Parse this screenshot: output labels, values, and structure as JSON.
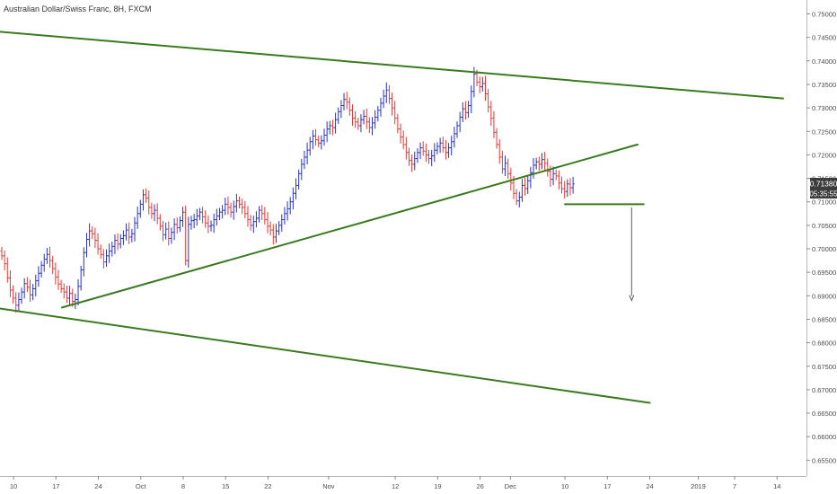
{
  "header": {
    "title": "Australian Dollar/Swiss Franc, 8H, FXCM"
  },
  "price_tag": {
    "price": "0.71380",
    "countdown": "05:35:55"
  },
  "chart_data": {
    "type": "candlestick",
    "title": "Australian Dollar/Swiss Franc, 8H, FXCM",
    "xlabel": "",
    "ylabel": "",
    "ylim": [
      0.6525,
      0.7525
    ],
    "y_ticks": [
      "0.75000",
      "0.74500",
      "0.74000",
      "0.73500",
      "0.73000",
      "0.72500",
      "0.72000",
      "0.71500",
      "0.71000",
      "0.70500",
      "0.70000",
      "0.69500",
      "0.69000",
      "0.68500",
      "0.68000",
      "0.67500",
      "0.67000",
      "0.66500",
      "0.66000",
      "0.65500"
    ],
    "x_ticks": [
      "10",
      "17",
      "24",
      "Oct",
      "8",
      "15",
      "22",
      "Nov",
      "12",
      "19",
      "26",
      "Dec",
      "10",
      "17",
      "24",
      "2019",
      "7",
      "14"
    ],
    "bars_per_day": 3,
    "candles_start": "Sep 10",
    "up_color": "#2632c8",
    "down_color": "#e53935",
    "close_path": [
      0.6985,
      0.6968,
      0.6938,
      0.6912,
      0.6895,
      0.688,
      0.6892,
      0.6908,
      0.6926,
      0.6918,
      0.6902,
      0.6915,
      0.6932,
      0.6948,
      0.6965,
      0.6978,
      0.6988,
      0.6975,
      0.6958,
      0.694,
      0.6925,
      0.6915,
      0.6908,
      0.6895,
      0.6905,
      0.6888,
      0.6892,
      0.692,
      0.6955,
      0.6992,
      0.702,
      0.7038,
      0.7032,
      0.7018,
      0.7,
      0.6988,
      0.6972,
      0.6985,
      0.6995,
      0.7005,
      0.7018,
      0.701,
      0.7022,
      0.7028,
      0.704,
      0.7025,
      0.7032,
      0.7055,
      0.7075,
      0.7095,
      0.7115,
      0.7108,
      0.7088,
      0.7075,
      0.7082,
      0.7065,
      0.7048,
      0.703,
      0.7042,
      0.7022,
      0.7035,
      0.7052,
      0.7045,
      0.706,
      0.7078,
      0.6975,
      0.7052,
      0.706,
      0.7062,
      0.707,
      0.7078,
      0.7068,
      0.7055,
      0.7048,
      0.705,
      0.7062,
      0.707,
      0.7078,
      0.7082,
      0.7095,
      0.7088,
      0.7078,
      0.709,
      0.7102,
      0.7095,
      0.7088,
      0.7075,
      0.7062,
      0.705,
      0.7058,
      0.7065,
      0.7082,
      0.7075,
      0.7062,
      0.7048,
      0.704,
      0.7025,
      0.7038,
      0.705,
      0.7062,
      0.7075,
      0.7085,
      0.71,
      0.7118,
      0.7135,
      0.716,
      0.718,
      0.7195,
      0.721,
      0.7228,
      0.724,
      0.7232,
      0.7225,
      0.723,
      0.7242,
      0.7255,
      0.7262,
      0.7258,
      0.7275,
      0.7292,
      0.7305,
      0.7318,
      0.7312,
      0.7295,
      0.7278,
      0.727,
      0.7262,
      0.7275,
      0.7282,
      0.727,
      0.7258,
      0.7268,
      0.728,
      0.7295,
      0.731,
      0.7325,
      0.7338,
      0.732,
      0.73,
      0.7278,
      0.7255,
      0.7238,
      0.7222,
      0.7205,
      0.7188,
      0.718,
      0.7192,
      0.7205,
      0.7215,
      0.7208,
      0.72,
      0.7192,
      0.7198,
      0.721,
      0.7218,
      0.7225,
      0.7215,
      0.7205,
      0.7215,
      0.7228,
      0.7245,
      0.7262,
      0.728,
      0.7298,
      0.729,
      0.7305,
      0.7335,
      0.7372,
      0.7355,
      0.7345,
      0.7352,
      0.733,
      0.7302,
      0.7278,
      0.7248,
      0.7222,
      0.7195,
      0.717,
      0.7182,
      0.716,
      0.714,
      0.7118,
      0.7102,
      0.711,
      0.7135,
      0.7128,
      0.7145,
      0.7162,
      0.7178,
      0.7185,
      0.718,
      0.719,
      0.7182,
      0.7165,
      0.7148,
      0.716,
      0.7155,
      0.714,
      0.7128,
      0.7122,
      0.7138,
      0.713,
      0.7138
    ],
    "series": [
      {
        "name": "",
        "type": "trendline",
        "points": [
          [
            "Sep 5",
            0.7465
          ],
          [
            "Jan 15",
            0.732
          ]
        ]
      },
      {
        "name": "",
        "type": "trendline",
        "points": [
          [
            "Sep 5",
            0.6878
          ],
          [
            "Dec 24",
            0.6672
          ]
        ]
      },
      {
        "name": "",
        "type": "trendline",
        "points": [
          [
            "Sep 18",
            0.6875
          ],
          [
            "Dec 22",
            0.7222
          ]
        ]
      },
      {
        "name": "",
        "type": "support",
        "points": [
          [
            "Dec 10",
            0.7095
          ],
          [
            "Dec 23",
            0.7095
          ]
        ]
      },
      {
        "name": "",
        "type": "arrow",
        "points": [
          [
            "Dec 21",
            0.7088
          ],
          [
            "Dec 21",
            0.689
          ]
        ]
      }
    ],
    "current_price": 0.7138,
    "grid": false
  }
}
